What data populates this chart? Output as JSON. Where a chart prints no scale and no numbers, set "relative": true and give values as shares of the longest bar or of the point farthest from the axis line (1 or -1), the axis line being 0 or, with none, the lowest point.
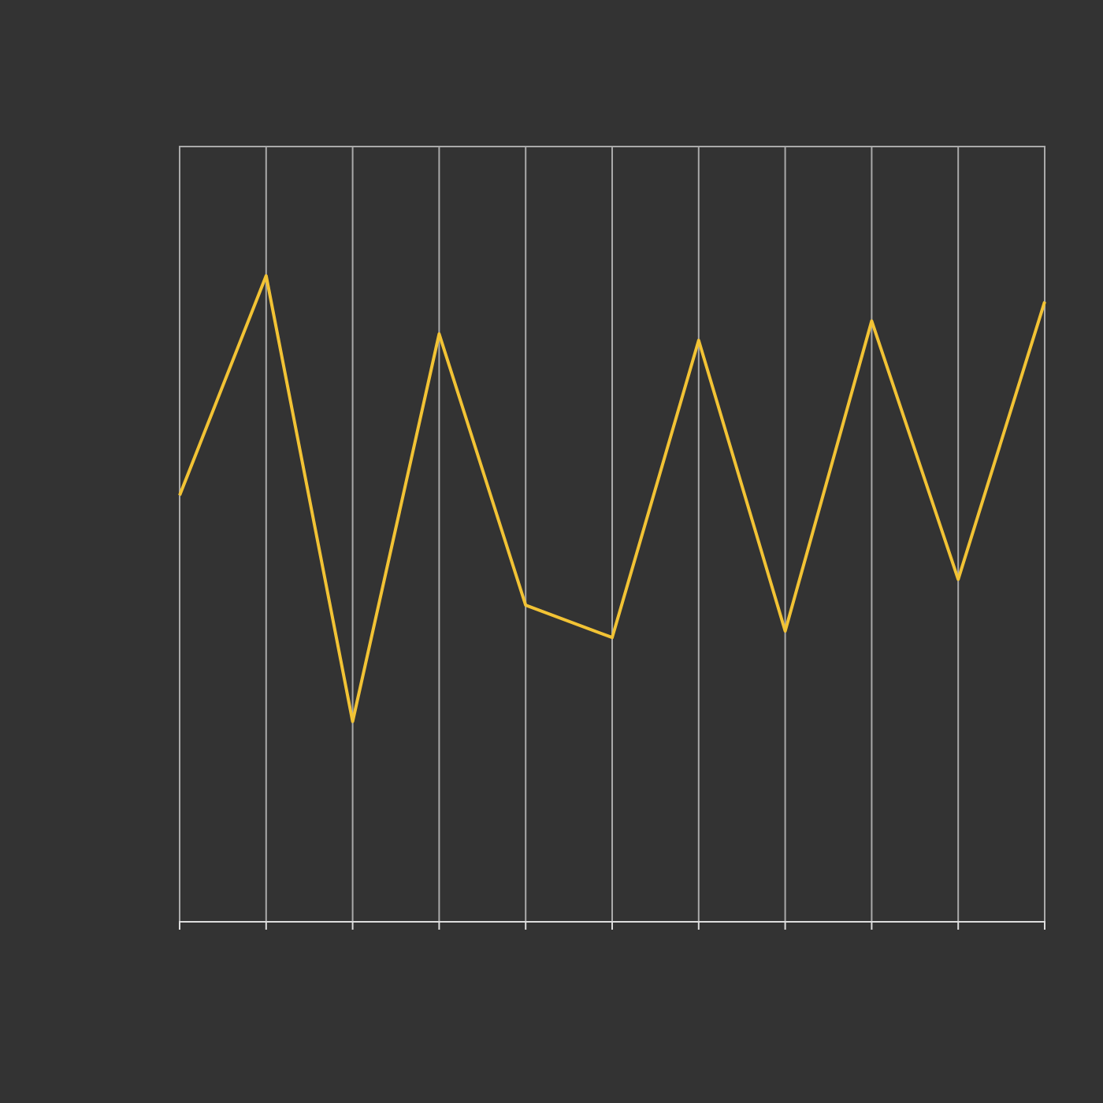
{
  "chart_data": {
    "type": "line",
    "relative": true,
    "categories": [
      null,
      null,
      null,
      null,
      null,
      null,
      null,
      null,
      null,
      null,
      null
    ],
    "series": [
      {
        "color": "#f2c335",
        "values": [
          0.66,
          1,
          0.31,
          0.91,
          0.49,
          0.44,
          0.9,
          0.45,
          0.93,
          0.53,
          0.96
        ]
      }
    ],
    "grid": "x",
    "marker": "none",
    "line_style": "solid"
  }
}
